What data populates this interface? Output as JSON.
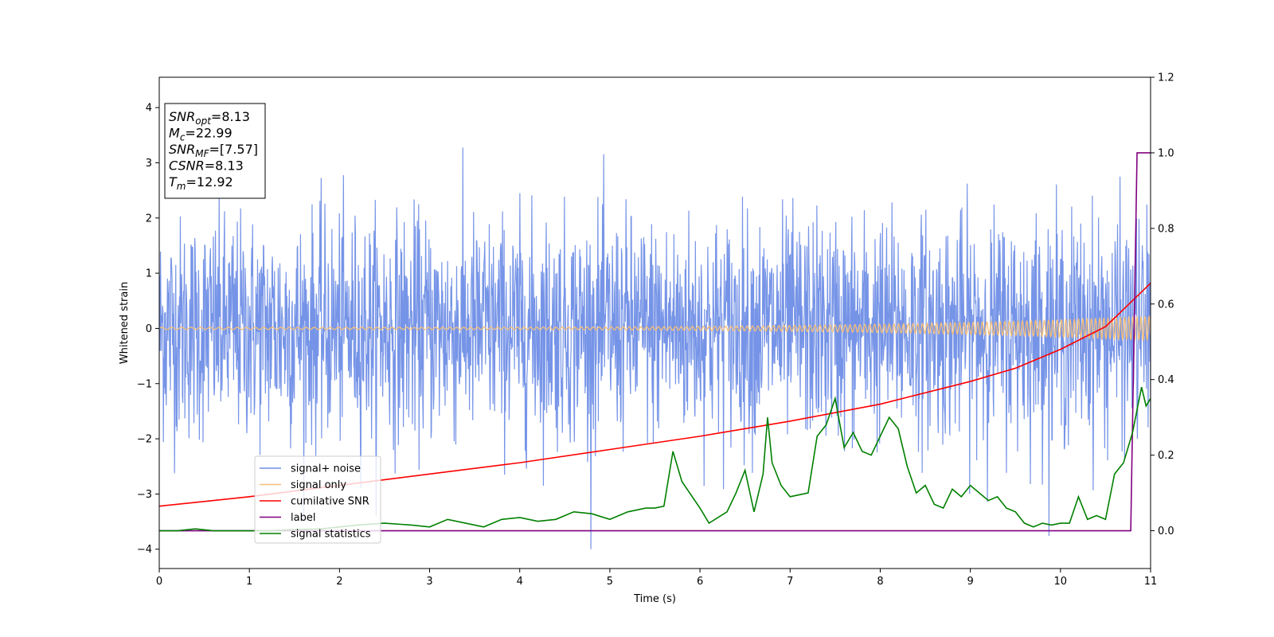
{
  "chart_data": {
    "type": "line",
    "xlabel": "Time (s)",
    "ylabel": "Whitened strain",
    "xlim": [
      0,
      11
    ],
    "ylim_left": [
      -4.35,
      4.55
    ],
    "ylim_right": [
      -0.1,
      1.2
    ],
    "x_ticks": [
      0,
      1,
      2,
      3,
      4,
      5,
      6,
      7,
      8,
      9,
      10,
      11
    ],
    "y_ticks_left": [
      -4,
      -3,
      -2,
      -1,
      0,
      1,
      2,
      3,
      4
    ],
    "y_ticks_right": [
      0.0,
      0.2,
      0.4,
      0.6,
      0.8,
      1.0,
      1.2
    ],
    "x_tick_labels": [
      "0",
      "1",
      "2",
      "3",
      "4",
      "5",
      "6",
      "7",
      "8",
      "9",
      "10",
      "11"
    ],
    "y_tick_labels_left": [
      "−4",
      "−3",
      "−2",
      "−1",
      "0",
      "1",
      "2",
      "3",
      "4"
    ],
    "y_tick_labels_right": [
      "0.0",
      "0.2",
      "0.4",
      "0.6",
      "0.8",
      "1.0",
      "1.2"
    ],
    "grid": false,
    "legend_position": "lower-left",
    "info_box": {
      "lines": [
        {
          "main": "SNR",
          "sub": "opt",
          "value": "=8.13"
        },
        {
          "main": "M",
          "sub": "c",
          "value": "=22.99"
        },
        {
          "main": "SNR",
          "sub": "MF",
          "value": "=[7.57]"
        },
        {
          "main": "CSNR",
          "sub": "",
          "value": "=8.13"
        },
        {
          "main": "T",
          "sub": "m",
          "value": "=12.92"
        }
      ]
    },
    "series": [
      {
        "name": "signal+ noise",
        "axis": "left",
        "color": "#6f8ee6",
        "kind": "noise",
        "spread_std": 1.0,
        "peak_max": 4.2,
        "peak_min": -4.0
      },
      {
        "name": "signal only",
        "axis": "left",
        "color": "#f5bf7a",
        "kind": "chirp",
        "amplitude_start": 0.02,
        "amplitude_end": 0.22
      },
      {
        "name": "cumilative SNR",
        "axis": "right",
        "color": "#ff0000",
        "x": [
          0,
          1,
          2,
          3,
          4,
          5,
          6,
          7,
          8,
          9,
          9.5,
          10,
          10.5,
          11
        ],
        "y": [
          0.065,
          0.09,
          0.12,
          0.15,
          0.18,
          0.215,
          0.25,
          0.29,
          0.335,
          0.395,
          0.43,
          0.48,
          0.54,
          0.655
        ]
      },
      {
        "name": "label",
        "axis": "right",
        "color": "#800080",
        "x": [
          0,
          10.78,
          10.85,
          11
        ],
        "y": [
          0.0,
          0.0,
          1.0,
          1.0
        ]
      },
      {
        "name": "signal statistics",
        "axis": "right",
        "color": "#008000",
        "x": [
          0,
          0.2,
          0.4,
          0.6,
          0.8,
          1.0,
          1.2,
          1.5,
          1.8,
          2.0,
          2.2,
          2.5,
          2.8,
          3.0,
          3.2,
          3.4,
          3.6,
          3.8,
          4.0,
          4.2,
          4.4,
          4.6,
          4.8,
          5.0,
          5.2,
          5.4,
          5.5,
          5.6,
          5.7,
          5.8,
          6.0,
          6.1,
          6.3,
          6.4,
          6.5,
          6.6,
          6.7,
          6.75,
          6.8,
          6.9,
          7.0,
          7.2,
          7.3,
          7.4,
          7.5,
          7.6,
          7.7,
          7.8,
          7.9,
          8.0,
          8.1,
          8.2,
          8.3,
          8.4,
          8.5,
          8.6,
          8.7,
          8.8,
          8.9,
          9.0,
          9.1,
          9.2,
          9.3,
          9.4,
          9.5,
          9.6,
          9.7,
          9.8,
          9.9,
          10.0,
          10.1,
          10.2,
          10.3,
          10.4,
          10.5,
          10.6,
          10.7,
          10.8,
          10.9,
          10.95,
          11.0
        ],
        "y": [
          0.0,
          0.0,
          0.005,
          0.0,
          0.0,
          0.0,
          0.0,
          0.003,
          0.005,
          0.01,
          0.015,
          0.02,
          0.015,
          0.01,
          0.03,
          0.02,
          0.01,
          0.03,
          0.035,
          0.025,
          0.03,
          0.05,
          0.045,
          0.03,
          0.05,
          0.06,
          0.06,
          0.065,
          0.21,
          0.13,
          0.06,
          0.02,
          0.05,
          0.1,
          0.16,
          0.05,
          0.15,
          0.3,
          0.18,
          0.12,
          0.09,
          0.1,
          0.25,
          0.28,
          0.35,
          0.22,
          0.26,
          0.21,
          0.2,
          0.25,
          0.3,
          0.27,
          0.17,
          0.1,
          0.12,
          0.07,
          0.06,
          0.11,
          0.09,
          0.12,
          0.1,
          0.08,
          0.09,
          0.06,
          0.05,
          0.02,
          0.01,
          0.02,
          0.015,
          0.02,
          0.02,
          0.09,
          0.03,
          0.04,
          0.03,
          0.15,
          0.18,
          0.26,
          0.38,
          0.33,
          0.35
        ]
      }
    ]
  }
}
